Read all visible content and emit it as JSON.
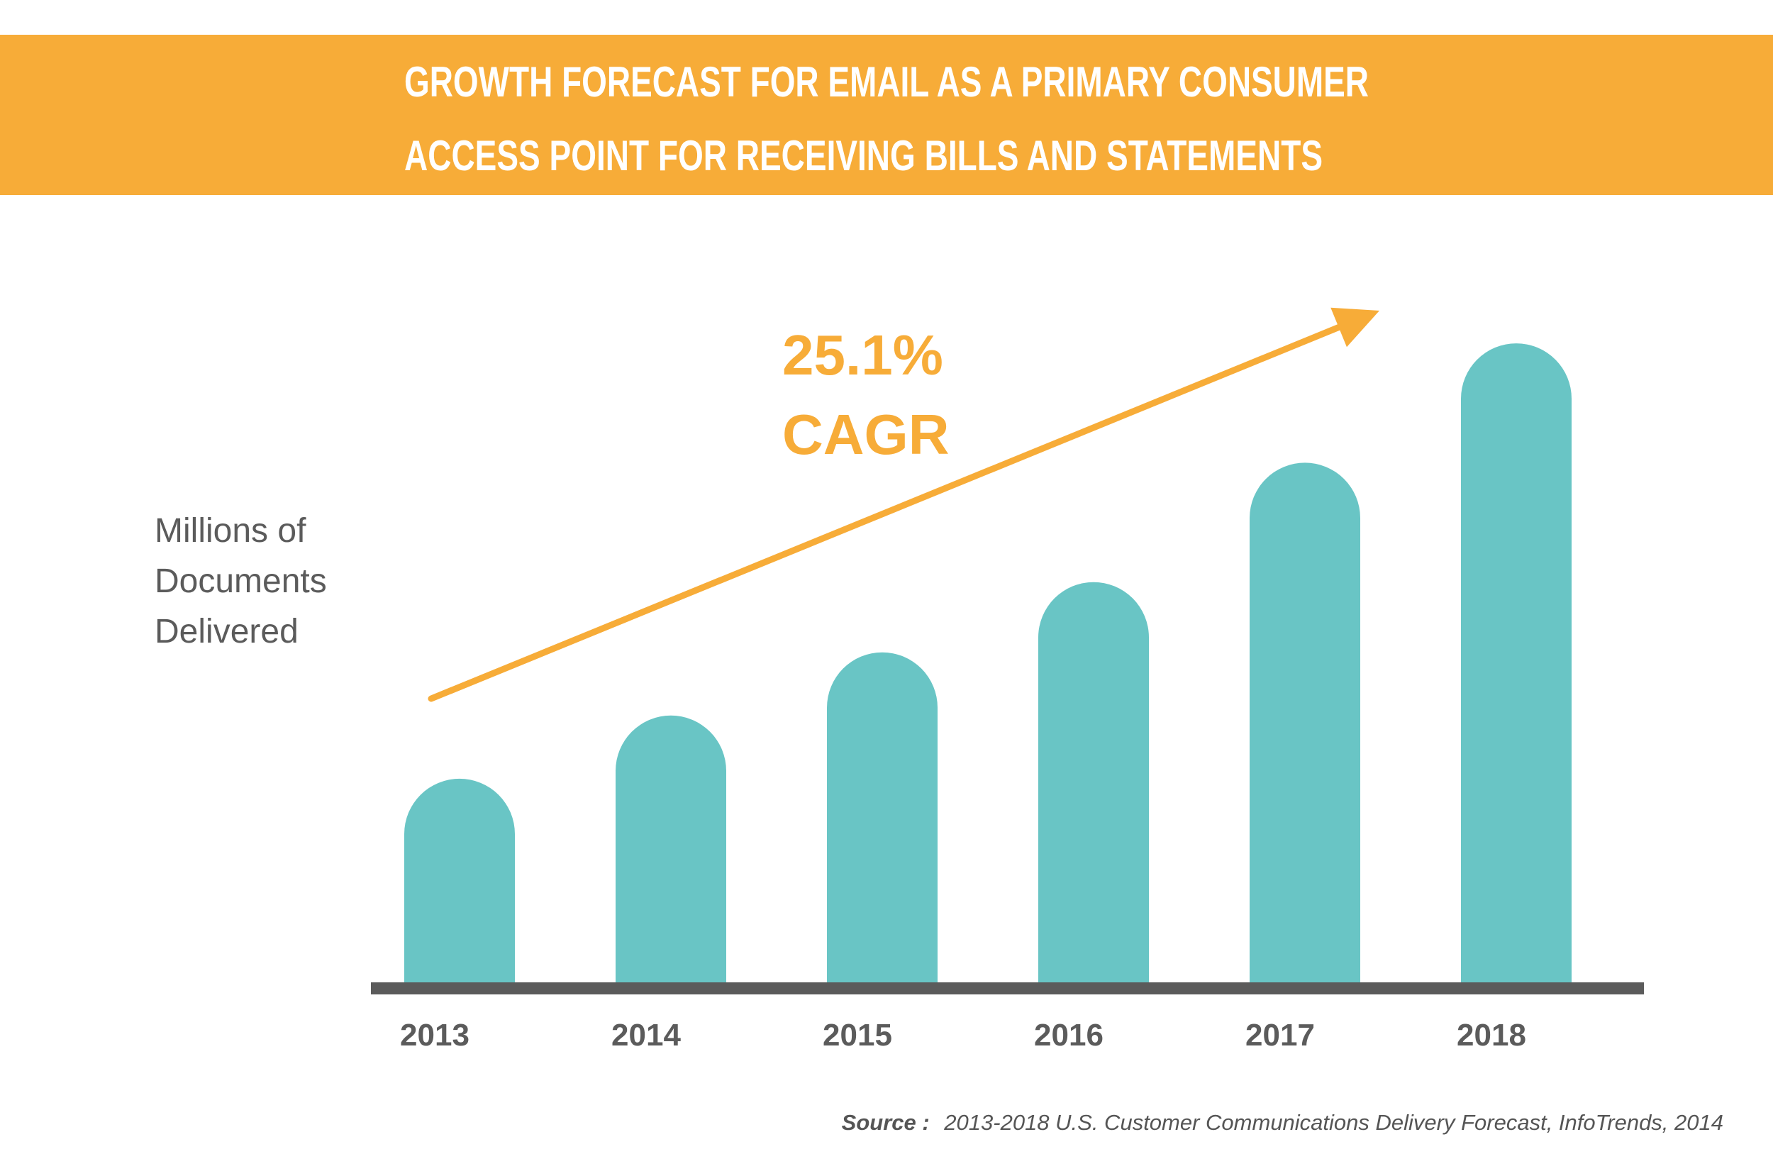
{
  "header": {
    "title_line1": "GROWTH FORECAST FOR EMAIL AS A PRIMARY CONSUMER",
    "title_line2": "ACCESS POINT FOR RECEIVING BILLS AND STATEMENTS"
  },
  "colors": {
    "banner": "#F7AC38",
    "bar": "#69C5C5",
    "accent": "#F7AC38",
    "axis": "#5B5B5B",
    "axis_label": "#5B5B5B",
    "source_text": "#555555"
  },
  "chart_data": {
    "type": "bar",
    "categories": [
      "2013",
      "2014",
      "2015",
      "2016",
      "2017",
      "2018"
    ],
    "values": [
      29,
      38,
      47,
      57,
      74,
      91
    ],
    "ylabel_lines": [
      "Millions of",
      "Documents",
      "Delivered"
    ],
    "annotation_lines": [
      "25.1%",
      "CAGR"
    ],
    "trend_arrow": true,
    "grid": false,
    "legend": "none"
  },
  "footer": {
    "source_label": "Source :",
    "source_text": "2013-2018 U.S. Customer Communications Delivery Forecast, InfoTrends, 2014"
  }
}
